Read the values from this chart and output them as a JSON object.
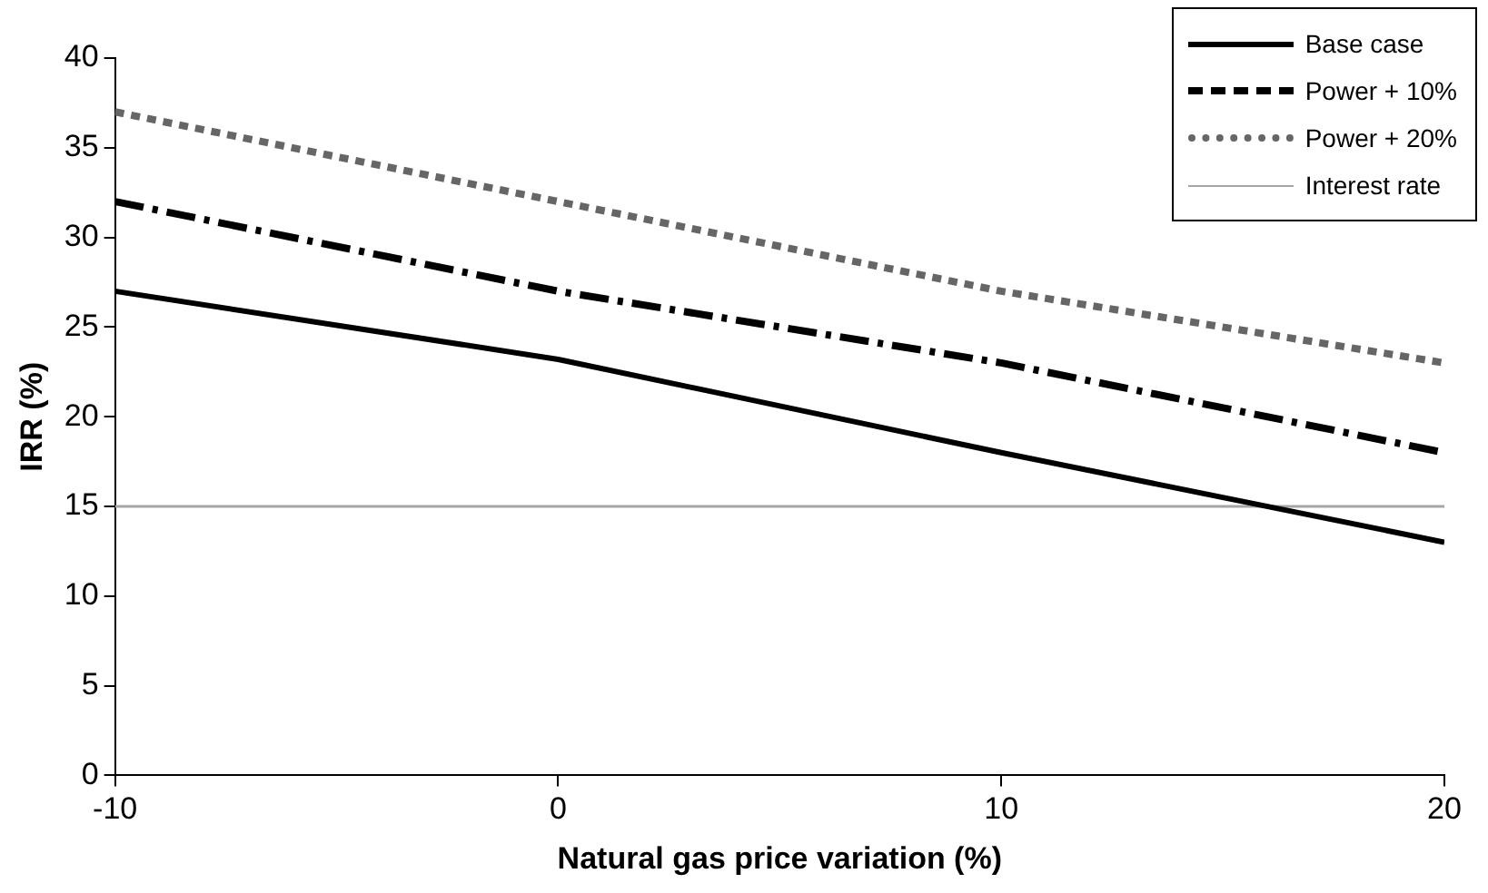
{
  "chart_data": {
    "type": "line",
    "xlabel": "Natural gas price variation (%)",
    "ylabel": "IRR (%)",
    "x": [
      -10,
      0,
      10,
      20
    ],
    "series": [
      {
        "name": "Base case",
        "color": "#000000",
        "values": [
          27,
          23.2,
          18,
          13
        ],
        "line_style": "solid"
      },
      {
        "name": "Power + 10%",
        "color": "#000000",
        "values": [
          32,
          27,
          23,
          18
        ],
        "line_style": "dashed"
      },
      {
        "name": "Power + 20%",
        "color": "#666666",
        "values": [
          37,
          32,
          27,
          23
        ],
        "line_style": "dotted"
      },
      {
        "name": "Interest rate",
        "color": "#a6a6a6",
        "values": [
          15,
          15,
          15,
          15
        ],
        "line_style": "solid"
      }
    ],
    "xlim": [
      -10,
      20
    ],
    "xticks": [
      -10,
      0,
      10,
      20
    ],
    "ylim": [
      0,
      40
    ],
    "yticks": [
      0,
      5,
      10,
      15,
      20,
      25,
      30,
      35,
      40
    ],
    "grid": false,
    "legend": "top right",
    "marker": "none"
  }
}
